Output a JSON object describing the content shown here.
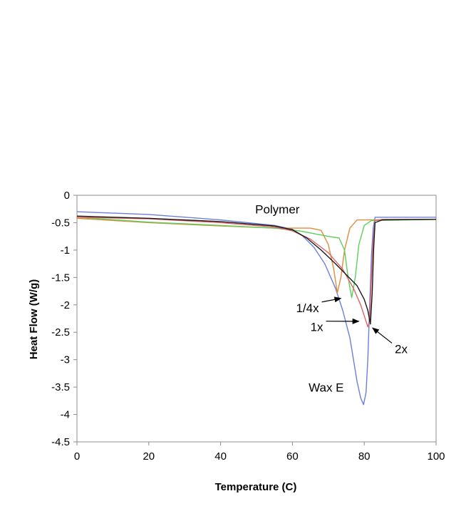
{
  "chart_data": {
    "type": "line",
    "title": "",
    "xlabel": "Temperature (C)",
    "ylabel": "Heat Flow (W/g)",
    "xlim": [
      0,
      100
    ],
    "ylim": [
      -4.5,
      0
    ],
    "xticks": [
      0,
      20,
      40,
      60,
      80,
      100
    ],
    "yticks": [
      0,
      -0.5,
      -1,
      -1.5,
      -2,
      -2.5,
      -3,
      -3.5,
      -4,
      -4.5
    ],
    "xtick_labels": [
      "0",
      "20",
      "40",
      "60",
      "80",
      "100"
    ],
    "ytick_labels": [
      "0",
      "-0.5",
      "-1",
      "-1.5",
      "-2",
      "-2.5",
      "-3",
      "-3.5",
      "-4",
      "-4.5"
    ],
    "grid": false,
    "legend": "none",
    "series": [
      {
        "color": "#6b7fe0",
        "points": [
          [
            0,
            -0.3
          ],
          [
            20,
            -0.35
          ],
          [
            40,
            -0.45
          ],
          [
            55,
            -0.55
          ],
          [
            60,
            -0.62
          ],
          [
            63,
            -0.75
          ],
          [
            66,
            -0.95
          ],
          [
            69,
            -1.25
          ],
          [
            72,
            -1.7
          ],
          [
            74,
            -2.1
          ],
          [
            76,
            -2.6
          ],
          [
            77,
            -3.0
          ],
          [
            78,
            -3.4
          ],
          [
            79,
            -3.7
          ],
          [
            79.8,
            -3.82
          ],
          [
            80.5,
            -3.6
          ],
          [
            81,
            -3.0
          ],
          [
            81.5,
            -2.0
          ],
          [
            82,
            -1.1
          ],
          [
            82.5,
            -0.6
          ],
          [
            83,
            -0.4
          ],
          [
            100,
            -0.4
          ]
        ]
      },
      {
        "color": "#e08c3a",
        "points": [
          [
            0,
            -0.42
          ],
          [
            20,
            -0.5
          ],
          [
            40,
            -0.56
          ],
          [
            55,
            -0.6
          ],
          [
            65,
            -0.6
          ],
          [
            68,
            -0.64
          ],
          [
            70,
            -0.9
          ],
          [
            71.5,
            -1.35
          ],
          [
            72.5,
            -1.78
          ],
          [
            73.5,
            -1.5
          ],
          [
            74.5,
            -1.0
          ],
          [
            76,
            -0.6
          ],
          [
            78,
            -0.45
          ],
          [
            100,
            -0.44
          ]
        ]
      },
      {
        "color": "#5bd05b",
        "points": [
          [
            0,
            -0.4
          ],
          [
            20,
            -0.49
          ],
          [
            40,
            -0.55
          ],
          [
            55,
            -0.6
          ],
          [
            62,
            -0.65
          ],
          [
            66,
            -0.7
          ],
          [
            70,
            -0.75
          ],
          [
            73,
            -0.78
          ],
          [
            74.5,
            -1.0
          ],
          [
            75.5,
            -1.5
          ],
          [
            76.5,
            -1.87
          ],
          [
            77.5,
            -1.5
          ],
          [
            78.5,
            -0.9
          ],
          [
            80,
            -0.55
          ],
          [
            82,
            -0.46
          ],
          [
            100,
            -0.44
          ]
        ]
      },
      {
        "color": "#e06464",
        "points": [
          [
            0,
            -0.4
          ],
          [
            20,
            -0.43
          ],
          [
            40,
            -0.5
          ],
          [
            55,
            -0.58
          ],
          [
            60,
            -0.65
          ],
          [
            65,
            -0.8
          ],
          [
            70,
            -1.05
          ],
          [
            74,
            -1.35
          ],
          [
            77,
            -1.7
          ],
          [
            79,
            -2.0
          ],
          [
            80,
            -2.2
          ],
          [
            81,
            -2.4
          ],
          [
            81.5,
            -2.3
          ],
          [
            82,
            -1.5
          ],
          [
            82.5,
            -0.8
          ],
          [
            83,
            -0.46
          ],
          [
            85,
            -0.44
          ],
          [
            100,
            -0.44
          ]
        ]
      },
      {
        "color": "#1a1a1a",
        "points": [
          [
            0,
            -0.38
          ],
          [
            20,
            -0.42
          ],
          [
            40,
            -0.48
          ],
          [
            55,
            -0.56
          ],
          [
            60,
            -0.63
          ],
          [
            64,
            -0.78
          ],
          [
            68,
            -1.0
          ],
          [
            72,
            -1.25
          ],
          [
            75,
            -1.45
          ],
          [
            78,
            -1.65
          ],
          [
            80,
            -1.9
          ],
          [
            81,
            -2.1
          ],
          [
            81.7,
            -2.35
          ],
          [
            82.2,
            -1.8
          ],
          [
            82.6,
            -1.0
          ],
          [
            83,
            -0.5
          ],
          [
            85,
            -0.45
          ],
          [
            100,
            -0.44
          ]
        ]
      }
    ],
    "annotations": [
      {
        "text": "Polymer",
        "x": 62,
        "y": -0.33,
        "anchor": "end"
      },
      {
        "text": "1/4x",
        "x": 61,
        "y": -2.13,
        "anchor": "start",
        "arrow_to": [
          73.5,
          -1.88
        ]
      },
      {
        "text": "1x",
        "x": 65,
        "y": -2.48,
        "anchor": "start",
        "arrow_to": [
          78.5,
          -2.3
        ]
      },
      {
        "text": "2x",
        "x": 88.5,
        "y": -2.88,
        "anchor": "start",
        "arrow_to": [
          82.3,
          -2.42
        ]
      },
      {
        "text": "Wax E",
        "x": 64.5,
        "y": -3.58,
        "anchor": "start"
      }
    ]
  }
}
